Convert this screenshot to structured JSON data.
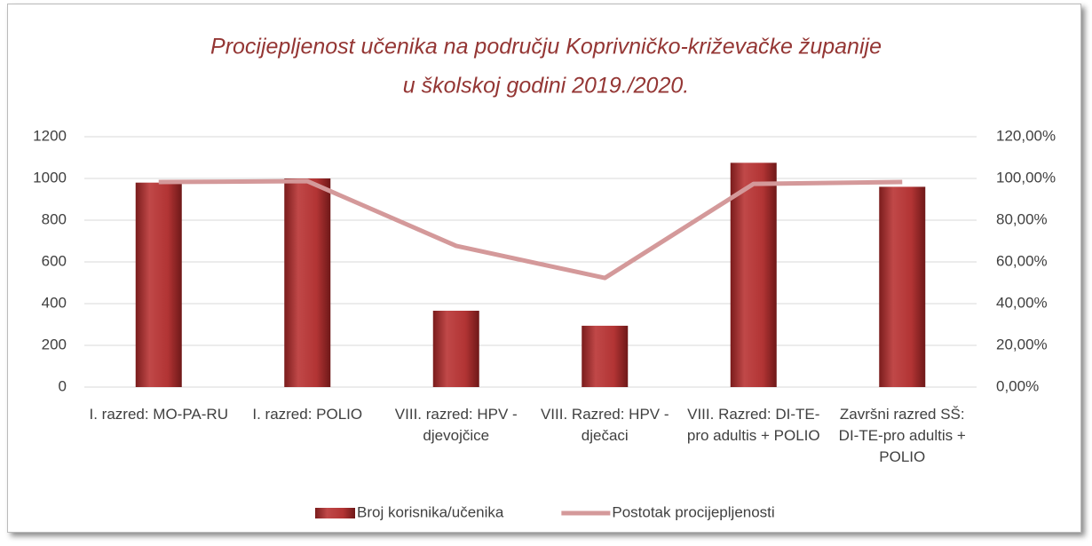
{
  "chart_data": {
    "type": "bar",
    "title": [
      "Procijepljenost učenika na području Koprivničko-križevačke županije",
      "u školskoj godini 2019./2020."
    ],
    "categories": [
      "I. razred: MO-PA-RU",
      "I. razred: POLIO",
      "VIII. razred: HPV - djevojčice",
      "VIII. Razred: HPV - dječaci",
      "VIII. Razred: DI-TE-pro adultis + POLIO",
      "Završni razred SŠ: DI-TE-pro adultis + POLIO"
    ],
    "series": [
      {
        "name": "Broj korisnika/učenika",
        "type": "bar",
        "color": "#a52a2a",
        "values": [
          980,
          1000,
          366,
          294,
          1075,
          960
        ]
      },
      {
        "name": "Postotak procijepljenosti",
        "type": "line",
        "axis": "y2",
        "color": "#d4999a",
        "values": [
          98.3,
          98.7,
          67.7,
          52.3,
          97.4,
          98.3
        ]
      }
    ],
    "ylim": [
      0,
      1200
    ],
    "yticks": [
      0,
      200,
      400,
      600,
      800,
      1000,
      1200
    ],
    "y2lim": [
      0,
      120
    ],
    "y2ticks": [
      {
        "value": 0,
        "label": "0,00%"
      },
      {
        "value": 20,
        "label": "20,00%"
      },
      {
        "value": 40,
        "label": "40,00%"
      },
      {
        "value": 60,
        "label": "60,00%"
      },
      {
        "value": 80,
        "label": "80,00%"
      },
      {
        "value": 100,
        "label": "100,00%"
      },
      {
        "value": 120,
        "label": "120,00%"
      }
    ],
    "grid": true,
    "legend": "bottom"
  }
}
